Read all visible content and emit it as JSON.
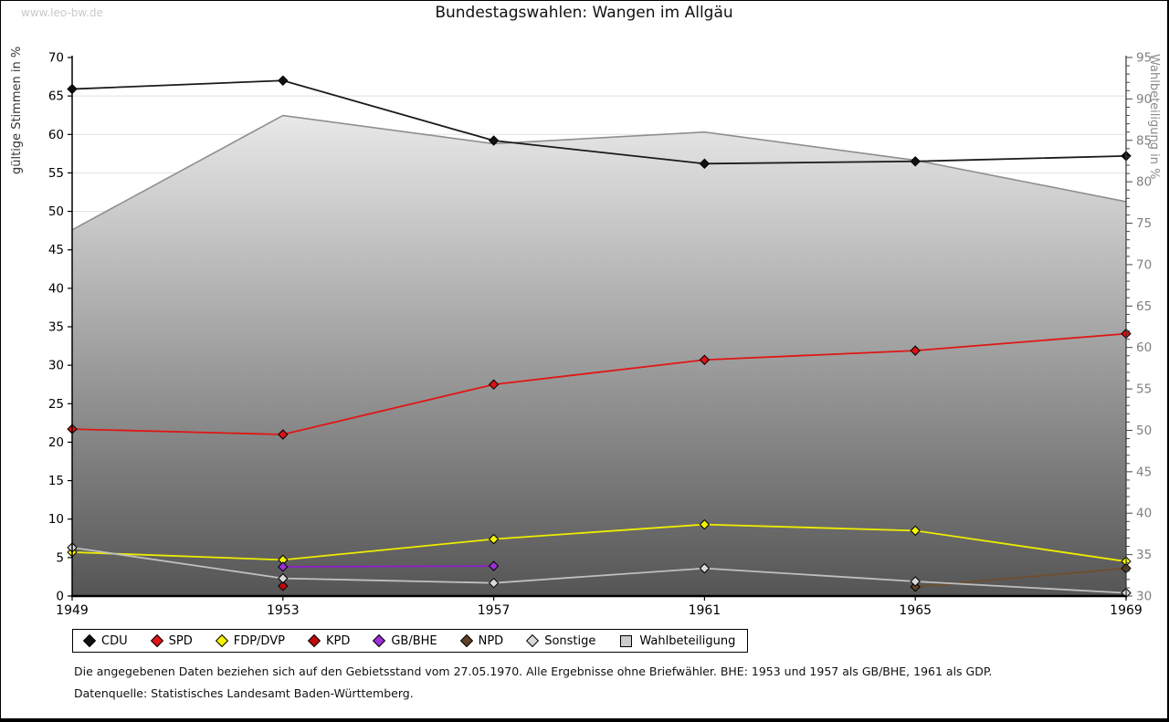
{
  "watermark": "www.leo-bw.de",
  "title": "Bundestagswahlen: Wangen im Allgäu",
  "footnotes": {
    "line1": "Die angegebenen Daten beziehen sich auf den Gebietsstand vom 27.05.1970. Alle Ergebnisse ohne Briefwähler. BHE: 1953 und 1957 als GB/BHE, 1961 als GDP.",
    "line2": "Datenquelle: Statistisches Landesamt Baden-Württemberg."
  },
  "legend": {
    "items": [
      {
        "label": "CDU",
        "marker": "diamond",
        "color": "#111111"
      },
      {
        "label": "SPD",
        "marker": "diamond",
        "color": "#e01616"
      },
      {
        "label": "FDP/DVP",
        "marker": "diamond",
        "color": "#f5f500"
      },
      {
        "label": "KPD",
        "marker": "diamond",
        "color": "#c00a0a"
      },
      {
        "label": "GB/BHE",
        "marker": "diamond",
        "color": "#9b30d6"
      },
      {
        "label": "NPD",
        "marker": "diamond",
        "color": "#5f4228"
      },
      {
        "label": "Sonstige",
        "marker": "diamond",
        "color": "#d9d9d9"
      },
      {
        "label": "Wahlbeteiligung",
        "marker": "square",
        "color": "#cccccc"
      }
    ]
  },
  "chart_data": {
    "type": "line",
    "title": "Bundestagswahlen: Wangen im Allgäu",
    "categories": [
      1949,
      1953,
      1957,
      1961,
      1965,
      1969
    ],
    "left_axis": {
      "label": "gültige Stimmen in %",
      "min": 0,
      "max": 70,
      "tick_step": 5
    },
    "right_axis": {
      "label": "Wahlbeteiligung in %",
      "min": 30,
      "max": 95,
      "tick_step": 5,
      "minor_step": 1
    },
    "grid": "horizontal",
    "legend_position": "bottom",
    "series": [
      {
        "name": "CDU",
        "axis": "left",
        "color": "#1a1a1a",
        "marker": "#111111",
        "values": [
          65.9,
          67.0,
          59.2,
          56.2,
          56.5,
          57.2
        ]
      },
      {
        "name": "SPD",
        "axis": "left",
        "color": "#e01616",
        "marker": "#dd1212",
        "values": [
          21.7,
          21.0,
          27.5,
          30.7,
          31.9,
          34.1
        ]
      },
      {
        "name": "FDP/DVP",
        "axis": "left",
        "color": "#eded00",
        "marker": "#f5f500",
        "values": [
          5.7,
          4.7,
          7.4,
          9.3,
          8.5,
          4.5
        ]
      },
      {
        "name": "KPD",
        "axis": "left",
        "color": "#c00a0a",
        "marker": "#c00a0a",
        "values": [
          null,
          1.3,
          null,
          null,
          null,
          null
        ]
      },
      {
        "name": "GB/BHE",
        "axis": "left",
        "color": "#8b20c8",
        "marker": "#9b30d6",
        "values": [
          null,
          3.8,
          3.9,
          null,
          null,
          null
        ]
      },
      {
        "name": "NPD",
        "axis": "left",
        "color": "#6e4e2e",
        "marker": "#5f4228",
        "values": [
          null,
          null,
          null,
          null,
          1.2,
          3.6
        ]
      },
      {
        "name": "Sonstige",
        "axis": "left",
        "color": "#bfbfbf",
        "marker": "#d9d9d9",
        "values": [
          6.3,
          2.3,
          1.7,
          3.6,
          1.9,
          0.4
        ]
      }
    ],
    "area_series": {
      "name": "Wahlbeteiligung",
      "axis": "right",
      "edge_color": "#8f8f8f",
      "fill_top": "#fafafa",
      "fill_bottom": "#555555",
      "values": [
        74.2,
        88.0,
        84.6,
        86.0,
        82.6,
        77.6
      ]
    },
    "colors": {
      "grid": "#e0e0e0",
      "axis": "#000000",
      "right_axis_text": "#808080"
    }
  }
}
